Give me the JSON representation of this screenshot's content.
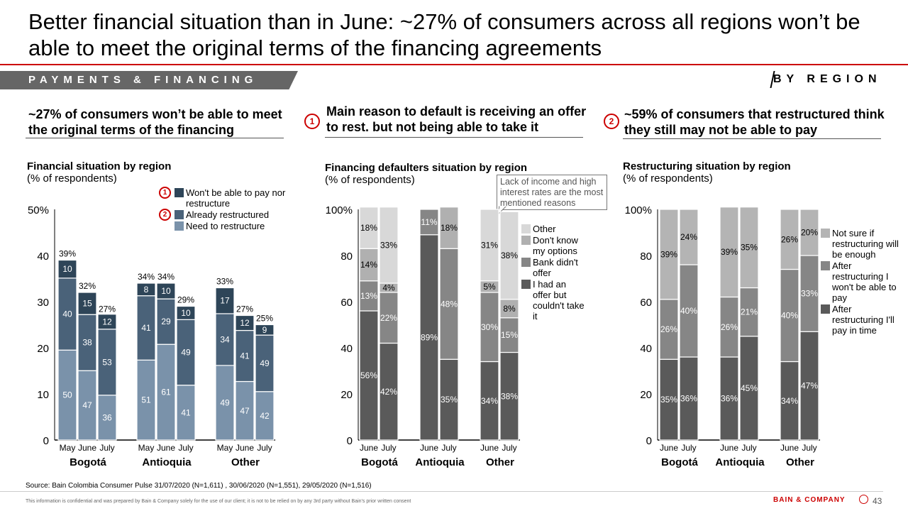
{
  "title": "Better financial situation than in June: ~27% of consumers across all regions won’t be able to meet the original terms of the financing agreements",
  "section_label": "PAYMENTS & FINANCING",
  "section_tag": "BY REGION",
  "panels": [
    {
      "heading": "~27% of consumers won’t be able to meet the original terms of the financing",
      "marker": ""
    },
    {
      "heading": "Main reason to default is receiving an offer to rest. but not being able to take it",
      "marker": "1"
    },
    {
      "heading": "~59% of consumers that restructured think they still may not be able to pay",
      "marker": "2"
    }
  ],
  "callout": "Lack of income and high interest rates are the most mentioned reasons",
  "source": "Source: Bain Colombia Consumer Pulse 31/07/2020 (N=1,611) , 30/06/2020 (N=1,551), 29/05/2020 (N=1,516)",
  "confidential": "This information is confidential and was prepared by Bain & Company solely for the use of our client; it is not to be relied on by any 3rd party without Bain's prior written consent",
  "brand": "BAIN & COMPANY",
  "page_number": "43",
  "chart_data": [
    {
      "type": "bar",
      "stacked": true,
      "title": "Financial situation by region",
      "subtitle": "(% of respondents)",
      "ylim": [
        0,
        50
      ],
      "yticks": [
        "0",
        "10",
        "20",
        "30",
        "40",
        "50%"
      ],
      "groups": [
        "Bogotá",
        "Antioquia",
        "Other"
      ],
      "categories": [
        "May",
        "June",
        "July"
      ],
      "totals": [
        [
          39,
          32,
          27
        ],
        [
          34,
          34,
          29
        ],
        [
          33,
          27,
          25
        ]
      ],
      "total_labels": [
        [
          "39%",
          "32%",
          "27%"
        ],
        [
          "34%",
          "34%",
          "29%"
        ],
        [
          "33%",
          "27%",
          "25%"
        ]
      ],
      "series": [
        {
          "name": "Need to restructure",
          "color": "#7a92aa",
          "values": [
            [
              50,
              47,
              36
            ],
            [
              51,
              61,
              41
            ],
            [
              49,
              47,
              42
            ]
          ]
        },
        {
          "name": "Already restructured",
          "color": "#4a6279",
          "values": [
            [
              40,
              38,
              53
            ],
            [
              41,
              29,
              49
            ],
            [
              34,
              41,
              49
            ]
          ],
          "marker": "2"
        },
        {
          "name": "Won't be able to pay nor restructure",
          "color": "#2e4558",
          "values": [
            [
              10,
              15,
              12
            ],
            [
              8,
              10,
              10
            ],
            [
              17,
              12,
              9
            ]
          ],
          "marker": "1"
        }
      ],
      "legend": "top-right",
      "legend_order": [
        2,
        1,
        0
      ],
      "note": "Segment values are shares (%) of each bar's total"
    },
    {
      "type": "bar",
      "stacked": true,
      "title": "Financing defaulters situation by region",
      "subtitle": "(% of respondents)",
      "ylim": [
        0,
        100
      ],
      "yticks": [
        "0",
        "20",
        "40",
        "60",
        "80",
        "100%"
      ],
      "groups": [
        "Bogotá",
        "Antioquia",
        "Other"
      ],
      "categories": [
        "June",
        "July"
      ],
      "series": [
        {
          "name": "I had an offer but couldn't take it",
          "color": "#5a5a5a",
          "values": [
            [
              56,
              42
            ],
            [
              89,
              35
            ],
            [
              34,
              38
            ]
          ]
        },
        {
          "name": "Bank didn't offer",
          "color": "#868686",
          "values": [
            [
              13,
              22
            ],
            [
              11,
              48
            ],
            [
              30,
              15
            ]
          ]
        },
        {
          "name": "Don't know my options",
          "color": "#b0b0b0",
          "values": [
            [
              14,
              4
            ],
            [
              0,
              18
            ],
            [
              5,
              8
            ]
          ]
        },
        {
          "name": "Other",
          "color": "#d8d8d8",
          "values": [
            [
              18,
              33
            ],
            [
              0,
              0
            ],
            [
              31,
              38
            ]
          ]
        }
      ],
      "legend": "right",
      "legend_order": [
        3,
        2,
        1,
        0
      ]
    },
    {
      "type": "bar",
      "stacked": true,
      "title": "Restructuring situation by region",
      "subtitle": "(% of respondents)",
      "ylim": [
        0,
        100
      ],
      "yticks": [
        "0",
        "20",
        "40",
        "60",
        "80",
        "100%"
      ],
      "groups": [
        "Bogotá",
        "Antioquia",
        "Other"
      ],
      "categories": [
        "June",
        "July"
      ],
      "series": [
        {
          "name": "After restructuring I'll pay in time",
          "color": "#5a5a5a",
          "values": [
            [
              35,
              36
            ],
            [
              36,
              45
            ],
            [
              34,
              47
            ]
          ]
        },
        {
          "name": "After restructuring I won't be able to pay",
          "color": "#868686",
          "values": [
            [
              26,
              40
            ],
            [
              26,
              21
            ],
            [
              40,
              33
            ]
          ]
        },
        {
          "name": "Not sure if restructuring will be enough",
          "color": "#b4b4b4",
          "values": [
            [
              39,
              24
            ],
            [
              39,
              35
            ],
            [
              26,
              20
            ]
          ]
        }
      ],
      "legend": "right",
      "legend_order": [
        2,
        1,
        0
      ]
    }
  ]
}
